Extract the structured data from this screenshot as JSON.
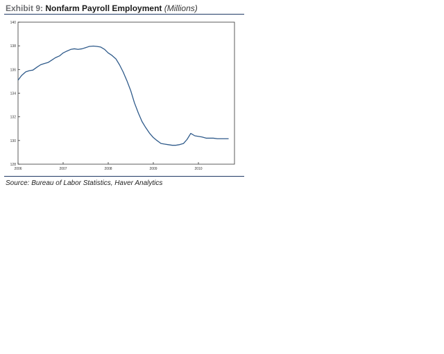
{
  "exhibit": {
    "prefix": "Exhibit 9:",
    "title": "Nonfarm Payroll Employment",
    "unit": "(Millions)",
    "source": "Source: Bureau of Labor Statistics, Haver Analytics"
  },
  "colors": {
    "line": "#2e5a8a",
    "rule": "#1f3864",
    "axis": "#333333"
  },
  "chart_data": {
    "type": "line",
    "title": "Nonfarm Payroll Employment",
    "xlabel": "",
    "ylabel": "",
    "xlim": [
      2006,
      2010.8
    ],
    "ylim": [
      128,
      140
    ],
    "x_ticks": [
      2006,
      2007,
      2008,
      2009,
      2010
    ],
    "x_tick_labels": [
      "2006",
      "2007",
      "2008",
      "2009",
      "2010"
    ],
    "y_ticks": [
      128,
      130,
      132,
      134,
      136,
      138,
      140
    ],
    "y_tick_labels": [
      "128",
      "130",
      "132",
      "134",
      "136",
      "138",
      "140"
    ],
    "grid": false,
    "legend": "none",
    "series": [
      {
        "x": [
          2006.0,
          2006.08,
          2006.17,
          2006.25,
          2006.33,
          2006.42,
          2006.5,
          2006.58,
          2006.67,
          2006.75,
          2006.83,
          2006.92,
          2007.0,
          2007.08,
          2007.17,
          2007.25,
          2007.33,
          2007.42,
          2007.5,
          2007.58,
          2007.67,
          2007.75,
          2007.83,
          2007.92,
          2008.0,
          2008.08,
          2008.17,
          2008.25,
          2008.33,
          2008.42,
          2008.5,
          2008.58,
          2008.67,
          2008.75,
          2008.83,
          2008.92,
          2009.0,
          2009.08,
          2009.17,
          2009.25,
          2009.33,
          2009.42,
          2009.5,
          2009.58,
          2009.67,
          2009.75,
          2009.83,
          2009.92,
          2010.0,
          2010.08,
          2010.17,
          2010.25,
          2010.33,
          2010.42,
          2010.5,
          2010.58,
          2010.67
        ],
        "values": [
          135.1,
          135.5,
          135.8,
          135.9,
          135.95,
          136.2,
          136.4,
          136.5,
          136.6,
          136.8,
          137.0,
          137.15,
          137.4,
          137.55,
          137.7,
          137.75,
          137.7,
          137.75,
          137.85,
          137.95,
          137.98,
          137.95,
          137.9,
          137.7,
          137.4,
          137.2,
          136.9,
          136.4,
          135.8,
          135.0,
          134.2,
          133.2,
          132.3,
          131.6,
          131.1,
          130.6,
          130.25,
          130.0,
          129.75,
          129.7,
          129.65,
          129.6,
          129.6,
          129.65,
          129.75,
          130.1,
          130.6,
          130.4,
          130.35,
          130.3,
          130.2,
          130.2,
          130.2,
          130.15,
          130.15,
          130.15,
          130.15
        ]
      }
    ]
  }
}
